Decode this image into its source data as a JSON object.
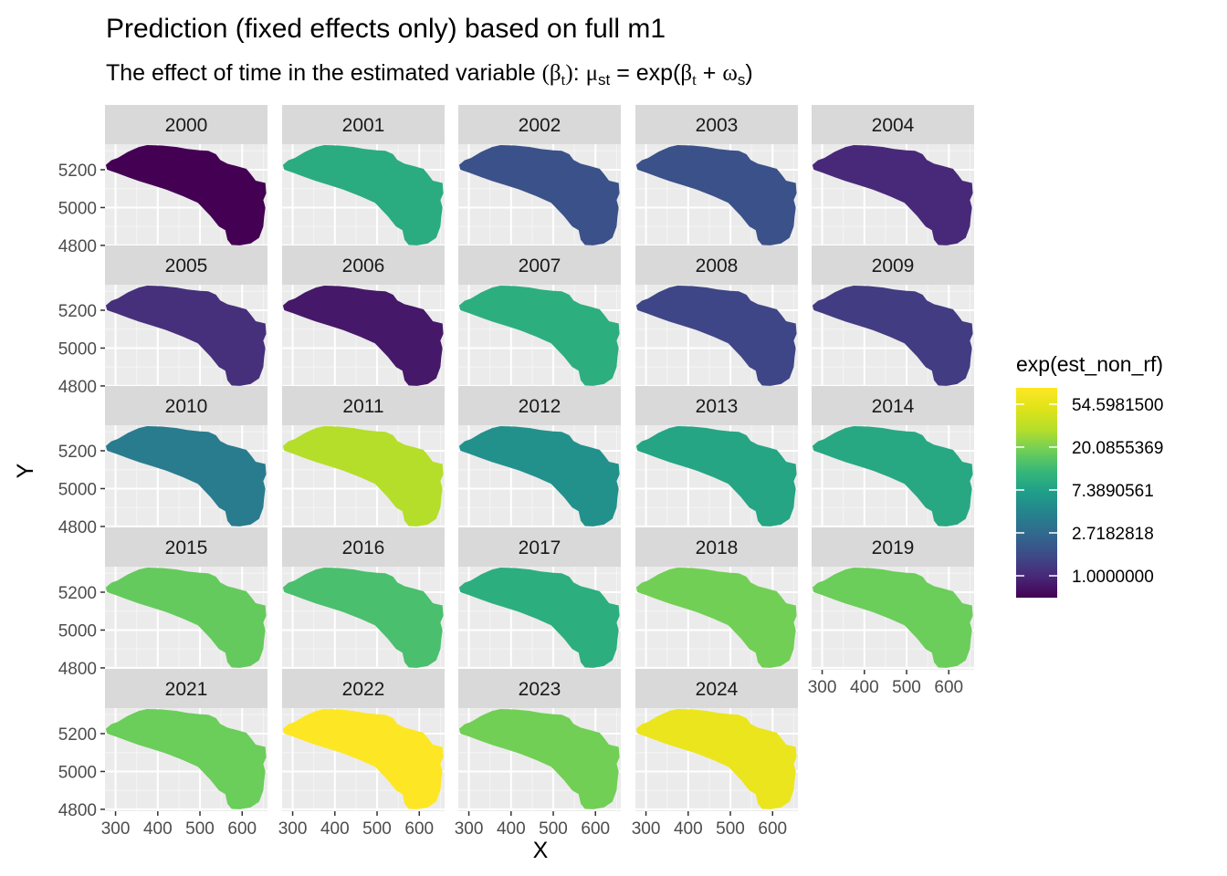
{
  "chart_data": {
    "type": "heatmap",
    "title": "Prediction (fixed effects only) based on full m1",
    "subtitle": {
      "prefix": "The effect of time in the estimated variable ",
      "beta_open": "(",
      "beta": "β",
      "beta_sub": "t",
      "beta_close": ")",
      "colon": ": ",
      "mu": "μ",
      "mu_sub": "st",
      "equals": " = exp(",
      "beta2": "β",
      "beta2_sub": "t",
      "plus": " + ",
      "omega": "ω",
      "omega_sub": "s",
      "close": ")"
    },
    "xlabel": "X",
    "ylabel": "Y",
    "x_ticks": [
      "300",
      "400",
      "500",
      "600"
    ],
    "x_tick_values": [
      300,
      400,
      500,
      600
    ],
    "xlim": [
      275,
      660
    ],
    "y_ticks": [
      "5200",
      "5000",
      "4800"
    ],
    "y_tick_values": [
      5200,
      5000,
      4800
    ],
    "ylim": [
      4790,
      5335
    ],
    "grid": true,
    "legend": {
      "title": "exp(est_non_rf)",
      "placement": "right",
      "breaks": [
        "54.5981500",
        "20.0855369",
        "7.3890561",
        "2.7182818",
        "1.0000000"
      ],
      "break_values": [
        54.59815,
        20.0855369,
        7.3890561,
        2.7182818,
        1.0
      ],
      "scale": "log",
      "range": [
        0.6,
        80
      ],
      "colormap": "viridis"
    },
    "panels": [
      {
        "year": "2000",
        "value": 0.6
      },
      {
        "year": "2001",
        "value": 9.0
      },
      {
        "year": "2002",
        "value": 1.8
      },
      {
        "year": "2003",
        "value": 1.8
      },
      {
        "year": "2004",
        "value": 1.0
      },
      {
        "year": "2005",
        "value": 1.1
      },
      {
        "year": "2006",
        "value": 0.8
      },
      {
        "year": "2007",
        "value": 9.5
      },
      {
        "year": "2008",
        "value": 1.5
      },
      {
        "year": "2009",
        "value": 1.3
      },
      {
        "year": "2010",
        "value": 3.8
      },
      {
        "year": "2011",
        "value": 30.0
      },
      {
        "year": "2012",
        "value": 5.5
      },
      {
        "year": "2013",
        "value": 8.0
      },
      {
        "year": "2014",
        "value": 8.5
      },
      {
        "year": "2015",
        "value": 17.0
      },
      {
        "year": "2016",
        "value": 13.5
      },
      {
        "year": "2017",
        "value": 9.5
      },
      {
        "year": "2018",
        "value": 19.0
      },
      {
        "year": "2019",
        "value": 18.0
      },
      {
        "year": "2021",
        "value": 18.0
      },
      {
        "year": "2022",
        "value": 80.0
      },
      {
        "year": "2023",
        "value": 19.0
      },
      {
        "year": "2024",
        "value": 60.0
      }
    ]
  }
}
